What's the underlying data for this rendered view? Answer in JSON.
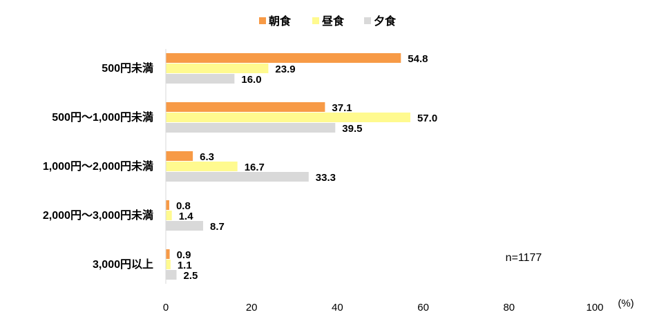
{
  "chart_data": {
    "type": "bar",
    "orientation": "horizontal",
    "categories": [
      "500円未満",
      "500円～1,000円未満",
      "1,000円～2,000円未満",
      "2,000円～3,000円未満",
      "3,000円以上"
    ],
    "series": [
      {
        "name": "朝食",
        "color": "#f79a46",
        "values": [
          54.8,
          37.1,
          6.3,
          0.8,
          0.9
        ]
      },
      {
        "name": "昼食",
        "color": "#fffa8f",
        "values": [
          23.9,
          57.0,
          16.7,
          1.4,
          1.1
        ]
      },
      {
        "name": "夕食",
        "color": "#d9d9d9",
        "values": [
          16.0,
          39.5,
          33.3,
          8.7,
          2.5
        ]
      }
    ],
    "value_labels": [
      [
        "54.8",
        "37.1",
        "6.3",
        "0.8",
        "0.9"
      ],
      [
        "23.9",
        "57.0",
        "16.7",
        "1.4",
        "1.1"
      ],
      [
        "16.0",
        "39.5",
        "33.3",
        "8.7",
        "2.5"
      ]
    ],
    "xlim": [
      0,
      100
    ],
    "xticks": [
      0,
      20,
      40,
      60,
      80,
      100
    ],
    "xtick_labels": [
      "0",
      "20",
      "40",
      "60",
      "80",
      "100"
    ],
    "xunit": "(%)",
    "legend_position": "top-center",
    "grid": false,
    "note": "n=1177"
  }
}
